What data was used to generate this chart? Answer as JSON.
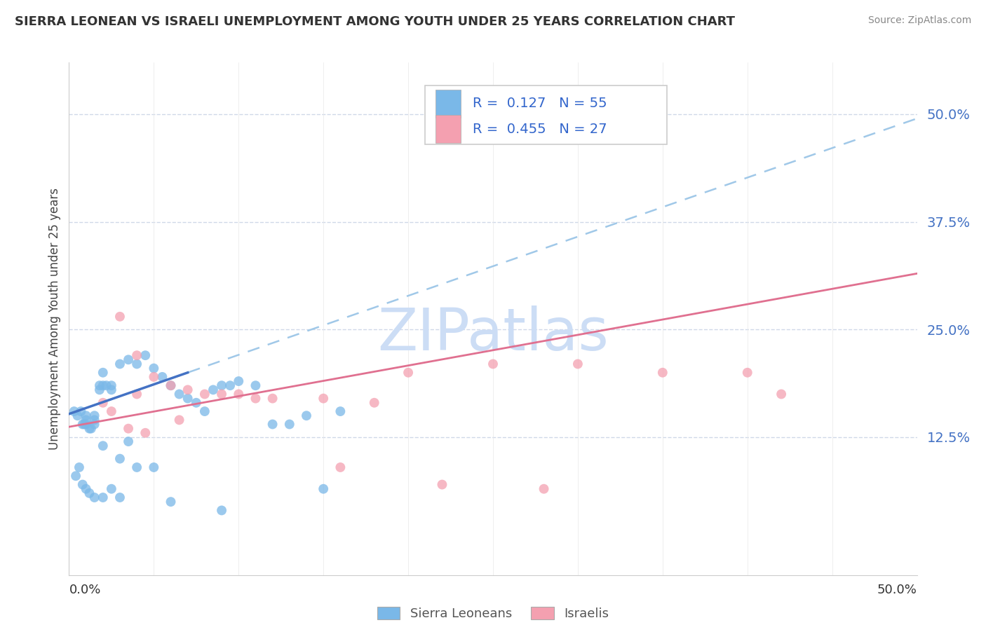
{
  "title": "SIERRA LEONEAN VS ISRAELI UNEMPLOYMENT AMONG YOUTH UNDER 25 YEARS CORRELATION CHART",
  "source": "Source: ZipAtlas.com",
  "ylabel": "Unemployment Among Youth under 25 years",
  "xmin": 0.0,
  "xmax": 0.5,
  "ymin": -0.035,
  "ymax": 0.56,
  "ytick_vals": [
    0.125,
    0.25,
    0.375,
    0.5
  ],
  "ytick_labels": [
    "12.5%",
    "25.0%",
    "37.5%",
    "50.0%"
  ],
  "sierra_color": "#7ab8e8",
  "israeli_color": "#f4a0b0",
  "sierra_line_color": "#4472c4",
  "israeli_line_color": "#e07090",
  "sierra_dash_color": "#a0c8e8",
  "watermark": "ZIPatlas",
  "watermark_color": "#ccddf5",
  "sierra_x": [
    0.005,
    0.007,
    0.008,
    0.009,
    0.01,
    0.01,
    0.01,
    0.012,
    0.013,
    0.015,
    0.015,
    0.015,
    0.018,
    0.018,
    0.02,
    0.02,
    0.02,
    0.022,
    0.025,
    0.025,
    0.025,
    0.03,
    0.03,
    0.035,
    0.035,
    0.04,
    0.04,
    0.045,
    0.05,
    0.05,
    0.055,
    0.06,
    0.065,
    0.07,
    0.075,
    0.08,
    0.085,
    0.09,
    0.095,
    0.1,
    0.11,
    0.12,
    0.13,
    0.14,
    0.15,
    0.16,
    0.003,
    0.004,
    0.006,
    0.008,
    0.01,
    0.012,
    0.015,
    0.02,
    0.03,
    0.06,
    0.09
  ],
  "sierra_y": [
    0.15,
    0.155,
    0.14,
    0.14,
    0.15,
    0.145,
    0.14,
    0.135,
    0.135,
    0.145,
    0.14,
    0.15,
    0.185,
    0.18,
    0.2,
    0.185,
    0.115,
    0.185,
    0.185,
    0.18,
    0.065,
    0.1,
    0.21,
    0.215,
    0.12,
    0.09,
    0.21,
    0.22,
    0.09,
    0.205,
    0.195,
    0.185,
    0.175,
    0.17,
    0.165,
    0.155,
    0.18,
    0.185,
    0.185,
    0.19,
    0.185,
    0.14,
    0.14,
    0.15,
    0.065,
    0.155,
    0.155,
    0.08,
    0.09,
    0.07,
    0.065,
    0.06,
    0.055,
    0.055,
    0.055,
    0.05,
    0.04
  ],
  "israeli_x": [
    0.02,
    0.025,
    0.03,
    0.035,
    0.04,
    0.04,
    0.045,
    0.05,
    0.06,
    0.065,
    0.07,
    0.08,
    0.09,
    0.1,
    0.11,
    0.12,
    0.15,
    0.16,
    0.18,
    0.2,
    0.22,
    0.25,
    0.28,
    0.3,
    0.35,
    0.4,
    0.42
  ],
  "israeli_y": [
    0.165,
    0.155,
    0.265,
    0.135,
    0.22,
    0.175,
    0.13,
    0.195,
    0.185,
    0.145,
    0.18,
    0.175,
    0.175,
    0.175,
    0.17,
    0.17,
    0.17,
    0.09,
    0.165,
    0.2,
    0.07,
    0.21,
    0.065,
    0.21,
    0.2,
    0.2,
    0.175
  ],
  "sierra_trend_x": [
    0.0,
    0.5
  ],
  "sierra_trend_y": [
    0.152,
    0.495
  ],
  "israeli_trend_x": [
    0.0,
    0.5
  ],
  "israeli_trend_y": [
    0.137,
    0.315
  ]
}
